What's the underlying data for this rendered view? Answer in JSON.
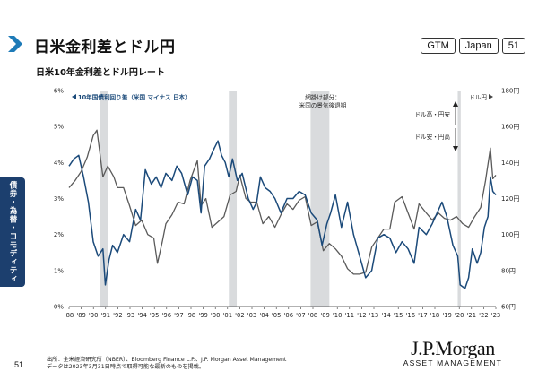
{
  "header": {
    "title": "日米金利差とドル円",
    "badges": [
      "GTM",
      "Japan",
      "51"
    ]
  },
  "sidebar": {
    "label": "債券・為替・コモディティ"
  },
  "page_number": "51",
  "footer": {
    "source_line1": "出所：全米経済研究所（NBER）、Bloomberg Finance L.P.、J.P. Morgan Asset Management",
    "source_line2": "データは2023年3月31日時点で取得可能な最新のものを掲載。"
  },
  "logo": {
    "name": "J.P.Morgan",
    "sub": "ASSET MANAGEMENT"
  },
  "colors": {
    "spread": "#1b4a7a",
    "usdjpy": "#5a5a5a",
    "recession": "#d9dbdd",
    "sidebar": "#1c3f6e"
  },
  "chart_data": {
    "type": "line",
    "title": "日米10年金利差とドル円レート",
    "x_ticks": [
      "'88",
      "'89",
      "'90",
      "'91",
      "'92",
      "'93",
      "'94",
      "'95",
      "'96",
      "'97",
      "'98",
      "'99",
      "'00",
      "'01",
      "'02",
      "'03",
      "'04",
      "'05",
      "'06",
      "'07",
      "'08",
      "'09",
      "'10",
      "'11",
      "'12",
      "'13",
      "'14",
      "'15",
      "'16",
      "'17",
      "'18",
      "'19",
      "'20",
      "'21",
      "'22",
      "'23"
    ],
    "xlim": [
      1988.0,
      2023.25
    ],
    "y_left": {
      "ticks": [
        "0%",
        "1%",
        "2%",
        "3%",
        "4%",
        "5%",
        "6%"
      ],
      "lim": [
        0,
        6
      ]
    },
    "y_right": {
      "ticks": [
        "60円",
        "80円",
        "100円",
        "120円",
        "140円",
        "160円",
        "180円"
      ],
      "lim": [
        60,
        180
      ]
    },
    "annotations": {
      "left_series_label": "10年国債利回り差（米国 マイナス 日本）",
      "right_series_label": "ドル円",
      "recession_label_1": "網掛け部分：",
      "recession_label_2": "米国の景気後退期",
      "arrow_up_label": "ドル高・円安",
      "arrow_down_label": "ドル安・円高"
    },
    "recessions": [
      [
        1990.55,
        1991.2
      ],
      [
        2001.2,
        2001.85
      ],
      [
        2007.95,
        2009.5
      ],
      [
        2020.1,
        2020.35
      ]
    ],
    "series": [
      {
        "name": "10年国債利回り差（米国 マイナス 日本）",
        "axis": "left",
        "x": [
          1988.0,
          1988.4,
          1988.8,
          1989.2,
          1989.6,
          1990.0,
          1990.4,
          1990.8,
          1991.0,
          1991.3,
          1991.6,
          1992.0,
          1992.5,
          1993.0,
          1993.5,
          1993.9,
          1994.3,
          1994.8,
          1995.2,
          1995.6,
          1996.0,
          1996.5,
          1996.9,
          1997.3,
          1997.8,
          1998.2,
          1998.6,
          1998.9,
          1999.2,
          1999.6,
          2000.0,
          2000.3,
          2000.6,
          2000.9,
          2001.2,
          2001.5,
          2001.9,
          2002.3,
          2002.8,
          2003.2,
          2003.5,
          2003.8,
          2004.2,
          2004.6,
          2005.0,
          2005.5,
          2006.0,
          2006.5,
          2007.0,
          2007.5,
          2008.0,
          2008.5,
          2008.9,
          2009.3,
          2009.6,
          2010.0,
          2010.5,
          2011.0,
          2011.5,
          2012.0,
          2012.5,
          2013.0,
          2013.5,
          2014.0,
          2014.5,
          2015.0,
          2015.5,
          2016.0,
          2016.5,
          2016.9,
          2017.5,
          2018.0,
          2018.4,
          2018.8,
          2019.2,
          2019.7,
          2020.1,
          2020.3,
          2020.7,
          2021.0,
          2021.3,
          2021.7,
          2022.0,
          2022.3,
          2022.6,
          2022.8,
          2023.0,
          2023.25
        ],
        "y": [
          3.9,
          4.1,
          4.2,
          3.6,
          2.9,
          1.8,
          1.4,
          1.6,
          0.6,
          1.3,
          1.7,
          1.5,
          2.0,
          1.8,
          2.7,
          2.4,
          3.8,
          3.4,
          3.6,
          3.3,
          3.7,
          3.5,
          3.9,
          3.7,
          3.1,
          3.6,
          3.5,
          2.6,
          3.9,
          4.1,
          4.4,
          4.6,
          4.2,
          4.0,
          3.6,
          4.1,
          3.5,
          3.7,
          3.0,
          2.7,
          2.9,
          3.6,
          3.3,
          3.2,
          3.0,
          2.6,
          3.0,
          3.0,
          3.2,
          3.1,
          2.6,
          2.4,
          1.7,
          2.3,
          2.6,
          3.1,
          2.2,
          2.9,
          2.0,
          1.4,
          0.8,
          1.0,
          1.9,
          2.0,
          1.9,
          1.5,
          1.8,
          1.6,
          1.2,
          2.2,
          2.0,
          2.3,
          2.6,
          2.9,
          2.5,
          1.7,
          1.4,
          0.6,
          0.5,
          0.8,
          1.6,
          1.2,
          1.5,
          2.2,
          2.5,
          3.6,
          3.2,
          3.1
        ]
      },
      {
        "name": "ドル円",
        "axis": "right",
        "x": [
          1988.0,
          1988.5,
          1989.0,
          1989.5,
          1990.0,
          1990.3,
          1990.8,
          1991.2,
          1991.7,
          1992.0,
          1992.5,
          1993.0,
          1993.5,
          1994.0,
          1994.5,
          1995.0,
          1995.3,
          1995.7,
          1996.0,
          1996.5,
          1997.0,
          1997.5,
          1998.0,
          1998.6,
          1998.9,
          1999.3,
          1999.8,
          2000.3,
          2000.8,
          2001.3,
          2001.8,
          2002.1,
          2002.6,
          2003.0,
          2003.5,
          2004.0,
          2004.5,
          2005.0,
          2005.5,
          2006.0,
          2006.5,
          2007.0,
          2007.5,
          2008.0,
          2008.5,
          2009.0,
          2009.5,
          2010.0,
          2010.5,
          2011.0,
          2011.5,
          2012.0,
          2012.5,
          2013.0,
          2013.5,
          2014.0,
          2014.5,
          2014.9,
          2015.5,
          2016.0,
          2016.5,
          2016.9,
          2017.5,
          2018.0,
          2018.5,
          2019.0,
          2019.5,
          2020.0,
          2020.5,
          2021.0,
          2021.5,
          2022.0,
          2022.4,
          2022.8,
          2023.0,
          2023.25
        ],
        "y": [
          126,
          130,
          135,
          143,
          155,
          158,
          132,
          138,
          132,
          126,
          126,
          116,
          105,
          108,
          100,
          98,
          84,
          96,
          106,
          111,
          118,
          117,
          130,
          141,
          116,
          120,
          104,
          107,
          110,
          122,
          124,
          133,
          120,
          118,
          118,
          106,
          110,
          104,
          111,
          117,
          114,
          119,
          121,
          105,
          107,
          91,
          95,
          92,
          88,
          81,
          78,
          78,
          79,
          93,
          98,
          103,
          103,
          118,
          121,
          112,
          103,
          117,
          112,
          108,
          112,
          109,
          108,
          110,
          106,
          104,
          110,
          115,
          130,
          148,
          131,
          133
        ]
      }
    ]
  }
}
